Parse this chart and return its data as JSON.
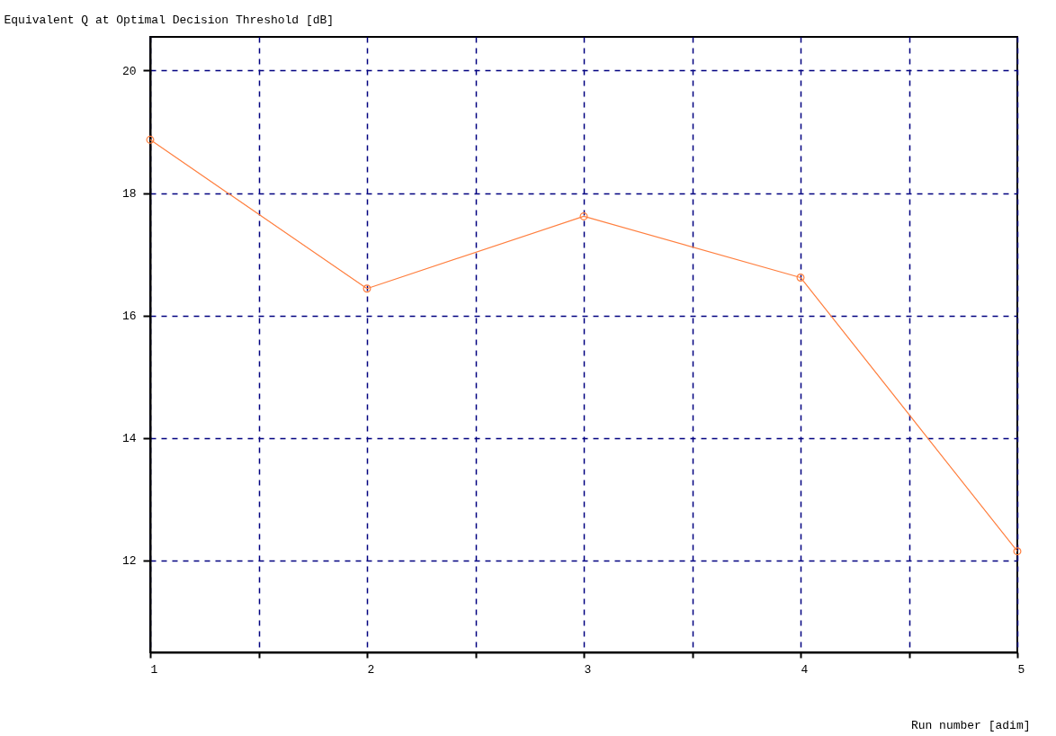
{
  "chart_data": {
    "type": "line",
    "ylabel": "Equivalent Q at Optimal Decision Threshold  [dB]",
    "xlabel": "Run number [adim]",
    "x": [
      1,
      2,
      3,
      4,
      5
    ],
    "series": [
      {
        "color": "#ff7f3f",
        "values": [
          18.87,
          16.44,
          17.62,
          16.62,
          12.15
        ]
      }
    ],
    "xlim": [
      1,
      5
    ],
    "xticks": [
      1,
      {
        "value": 1.5,
        "label": null
      },
      2,
      {
        "value": 2.5,
        "label": null
      },
      3,
      {
        "value": 3.5,
        "label": null
      },
      4,
      {
        "value": 4.5,
        "label": null
      },
      5
    ],
    "ylim": [
      10.5,
      20.55
    ],
    "yticks": [
      12,
      14,
      16,
      18,
      20
    ],
    "grid": true,
    "marker": "circle",
    "line_style": "solid"
  }
}
